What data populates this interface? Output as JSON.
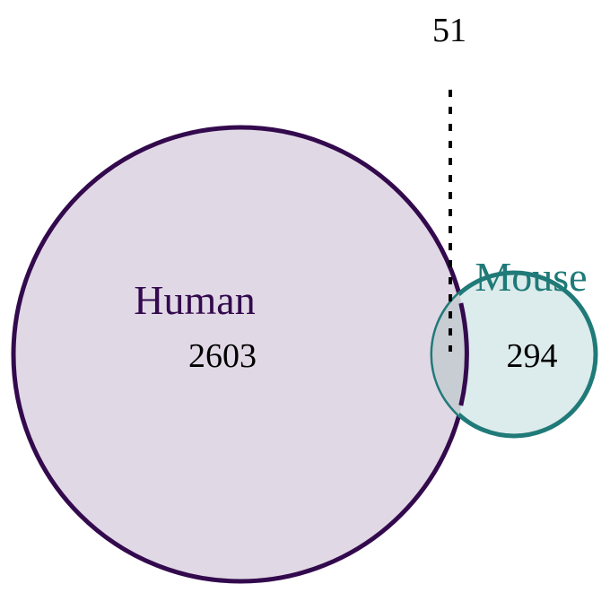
{
  "diagram": {
    "type": "venn",
    "sets": [
      {
        "name": "Human",
        "only_count": "2603",
        "stroke_color": "#330a4d",
        "fill_color": "#e1d8e5"
      },
      {
        "name": "Mouse",
        "only_count": "294",
        "stroke_color": "#1f7a78",
        "fill_color": "#dcebeb"
      }
    ],
    "intersection_count": "51",
    "overlap_fill_color": "#c8ccd3"
  }
}
